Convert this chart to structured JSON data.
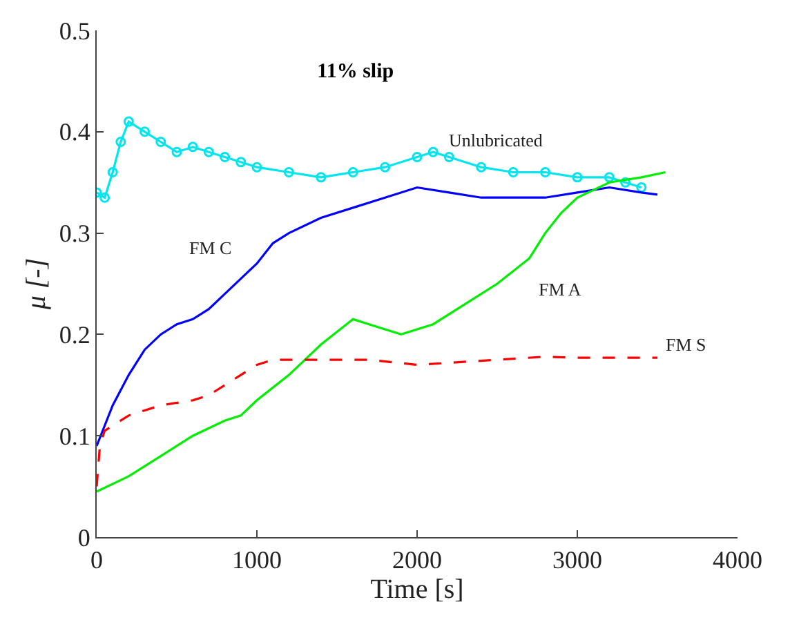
{
  "chart_data": {
    "type": "line",
    "title": "11% slip",
    "xlabel": "Time [s]",
    "ylabel": "μ [-]",
    "xlim": [
      0,
      4000
    ],
    "xticks": [
      0,
      1000,
      2000,
      3000,
      4000
    ],
    "ylim": [
      0,
      0.5
    ],
    "yticks": [
      0,
      0.1,
      0.2,
      0.3,
      0.4,
      0.5
    ],
    "legend": false,
    "series": [
      {
        "name": "Unlubricated",
        "color": "#00e5ee",
        "marker": "circle",
        "line_style": "solid",
        "x": [
          0,
          50,
          100,
          150,
          200,
          300,
          400,
          500,
          600,
          700,
          800,
          900,
          1000,
          1200,
          1400,
          1600,
          1800,
          2000,
          2100,
          2200,
          2400,
          2600,
          2800,
          3000,
          3200,
          3300,
          3400
        ],
        "values": [
          0.34,
          0.335,
          0.36,
          0.39,
          0.41,
          0.4,
          0.39,
          0.38,
          0.385,
          0.38,
          0.375,
          0.37,
          0.365,
          0.36,
          0.355,
          0.36,
          0.365,
          0.375,
          0.38,
          0.375,
          0.365,
          0.36,
          0.36,
          0.355,
          0.355,
          0.35,
          0.345
        ]
      },
      {
        "name": "FM C",
        "color": "#0000ff",
        "marker": "none",
        "line_style": "solid",
        "x": [
          0,
          50,
          100,
          200,
          300,
          400,
          500,
          600,
          700,
          800,
          900,
          1000,
          1100,
          1200,
          1400,
          1600,
          1800,
          2000,
          2200,
          2400,
          2600,
          2800,
          3000,
          3200,
          3400,
          3500
        ],
        "values": [
          0.09,
          0.11,
          0.13,
          0.16,
          0.185,
          0.2,
          0.21,
          0.215,
          0.225,
          0.24,
          0.255,
          0.27,
          0.29,
          0.3,
          0.315,
          0.325,
          0.335,
          0.345,
          0.34,
          0.335,
          0.335,
          0.335,
          0.34,
          0.345,
          0.34,
          0.338
        ]
      },
      {
        "name": "FM A",
        "color": "#00ee00",
        "marker": "none",
        "line_style": "solid",
        "x": [
          0,
          200,
          400,
          600,
          800,
          900,
          1000,
          1200,
          1400,
          1600,
          1700,
          1900,
          2100,
          2300,
          2500,
          2700,
          2800,
          2900,
          3000,
          3200,
          3400,
          3550
        ],
        "values": [
          0.045,
          0.06,
          0.08,
          0.1,
          0.115,
          0.12,
          0.135,
          0.16,
          0.19,
          0.215,
          0.21,
          0.2,
          0.21,
          0.23,
          0.25,
          0.275,
          0.3,
          0.32,
          0.335,
          0.35,
          0.355,
          0.36
        ]
      },
      {
        "name": "FM S",
        "color": "#ff0000",
        "marker": "none",
        "line_style": "dashed",
        "x": [
          0,
          20,
          50,
          200,
          400,
          600,
          700,
          800,
          900,
          1000,
          1100,
          1300,
          1500,
          1700,
          2000,
          2200,
          2500,
          2800,
          3000,
          3300,
          3500
        ],
        "values": [
          0.05,
          0.09,
          0.105,
          0.12,
          0.13,
          0.135,
          0.14,
          0.15,
          0.16,
          0.17,
          0.175,
          0.175,
          0.175,
          0.175,
          0.17,
          0.172,
          0.175,
          0.178,
          0.177,
          0.177,
          0.177
        ]
      }
    ]
  }
}
